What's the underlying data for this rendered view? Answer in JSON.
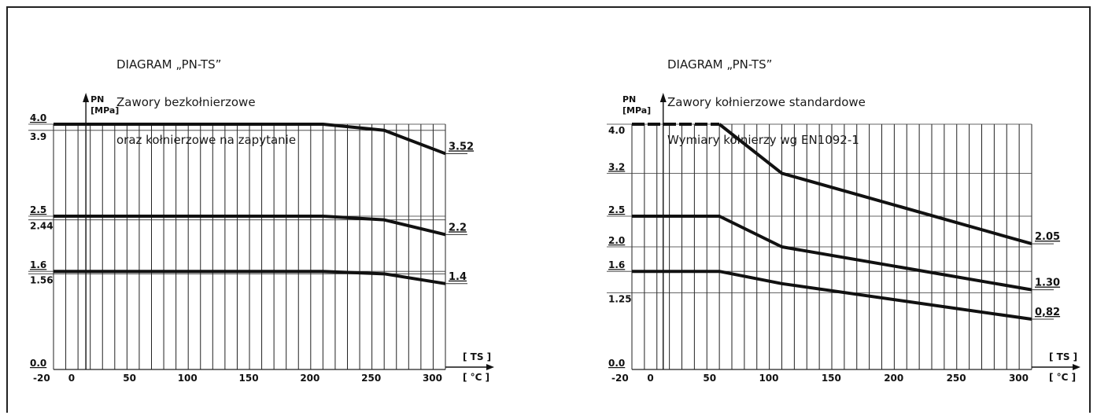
{
  "chart_data": [
    {
      "type": "line",
      "title": [
        "DIAGRAM „PN-TS”",
        "Zawory bezkołnierzowe",
        "oraz kołnierzowe na zapytanie"
      ],
      "ylabel": [
        "PN",
        "[MPa]"
      ],
      "xlabel": [
        "[ TS ]",
        "[ °C ]"
      ],
      "xlim": [
        -20,
        300
      ],
      "ylim": [
        0,
        4.0
      ],
      "x_ticks": [
        {
          "value": -20,
          "label": "-20"
        },
        {
          "value": 0,
          "label": "0"
        },
        {
          "value": 50,
          "label": "50"
        },
        {
          "value": 100,
          "label": "100"
        },
        {
          "value": 150,
          "label": "150"
        },
        {
          "value": 200,
          "label": "200"
        },
        {
          "value": 250,
          "label": "250"
        },
        {
          "value": 300,
          "label": "300"
        }
      ],
      "y_ticks": [
        {
          "value": 4.0,
          "label": "4.0",
          "underline": true
        },
        {
          "value": 3.9,
          "label": "3.9",
          "underline": false
        },
        {
          "value": 2.5,
          "label": "2.5",
          "underline": true
        },
        {
          "value": 2.44,
          "label": "2.44",
          "underline": false
        },
        {
          "value": 1.6,
          "label": "1.6",
          "underline": true
        },
        {
          "value": 1.56,
          "label": "1.56",
          "underline": false
        },
        {
          "value": 0.0,
          "label": "0.0",
          "underline": true
        }
      ],
      "series": [
        {
          "x": [
            -20,
            200,
            250,
            300
          ],
          "y": [
            4.0,
            4.0,
            3.9,
            3.52
          ],
          "end_label": "3.52",
          "dashed_start": false
        },
        {
          "x": [
            -20,
            200,
            250,
            300
          ],
          "y": [
            2.5,
            2.5,
            2.44,
            2.2
          ],
          "end_label": "2.2",
          "dashed_start": false
        },
        {
          "x": [
            -20,
            200,
            250,
            300
          ],
          "y": [
            1.6,
            1.6,
            1.56,
            1.4
          ],
          "end_label": "1.4",
          "dashed_start": false
        }
      ],
      "grid": true,
      "minor_grid_step": 10
    },
    {
      "type": "line",
      "title": [
        "DIAGRAM „PN-TS”",
        "Zawory kołnierzowe standardowe",
        "Wymiary kołnierzy wg EN1092-1"
      ],
      "ylabel": [
        "PN",
        "[MPa]"
      ],
      "xlabel": [
        "[ TS ]",
        "[ °C ]"
      ],
      "xlim": [
        -20,
        300
      ],
      "ylim": [
        0,
        4.0
      ],
      "x_ticks": [
        {
          "value": -20,
          "label": "-20"
        },
        {
          "value": 0,
          "label": "0"
        },
        {
          "value": 50,
          "label": "50"
        },
        {
          "value": 100,
          "label": "100"
        },
        {
          "value": 150,
          "label": "150"
        },
        {
          "value": 200,
          "label": "200"
        },
        {
          "value": 250,
          "label": "250"
        },
        {
          "value": 300,
          "label": "300"
        }
      ],
      "y_ticks": [
        {
          "value": 4.0,
          "label": "4.0",
          "underline": false
        },
        {
          "value": 3.2,
          "label": "3.2",
          "underline": true
        },
        {
          "value": 2.5,
          "label": "2.5",
          "underline": true
        },
        {
          "value": 2.0,
          "label": "2.0",
          "underline": true
        },
        {
          "value": 1.6,
          "label": "1.6",
          "underline": true
        },
        {
          "value": 1.25,
          "label": "1.25",
          "underline": false
        },
        {
          "value": 0.0,
          "label": "0.0",
          "underline": true
        }
      ],
      "series": [
        {
          "x": [
            -20,
            50,
            100,
            300
          ],
          "y": [
            4.0,
            4.0,
            3.2,
            2.05
          ],
          "end_label": "2.05",
          "dashed_start": true
        },
        {
          "x": [
            -20,
            50,
            100,
            300
          ],
          "y": [
            2.5,
            2.5,
            2.0,
            1.3
          ],
          "end_label": "1.30",
          "dashed_start": false
        },
        {
          "x": [
            -20,
            50,
            100,
            300
          ],
          "y": [
            1.6,
            1.6,
            1.4,
            0.82
          ],
          "end_label": "0,82",
          "dashed_start": false
        }
      ],
      "grid": true,
      "minor_grid_step": 10
    }
  ]
}
